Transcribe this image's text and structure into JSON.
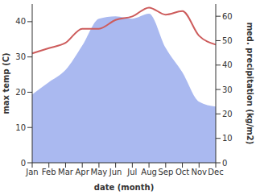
{
  "chart_data": {
    "type": "line",
    "categories": [
      "Jan",
      "Feb",
      "Mar",
      "Apr",
      "May",
      "Jun",
      "Jul",
      "Aug",
      "Sep",
      "Oct",
      "Nov",
      "Dec"
    ],
    "xlabel": "date (month)",
    "ylabel": "max temp (C)",
    "y2label": "med. precipitation (kg/m2)",
    "ylim": [
      0,
      45
    ],
    "yticks": [
      0,
      10,
      20,
      30,
      40
    ],
    "y2lim": [
      0,
      65
    ],
    "y2ticks": [
      0,
      10,
      20,
      30,
      40,
      50,
      60
    ],
    "grid": false,
    "series": [
      {
        "type": "area",
        "axis": "y2",
        "color": "#aab9f0",
        "values": [
          28,
          33,
          38,
          48,
          59,
          60,
          59,
          61,
          47,
          37,
          25,
          23
        ]
      },
      {
        "type": "line",
        "color": "#cd5c5c",
        "values": [
          31,
          32.5,
          34,
          38,
          38,
          40.5,
          41.5,
          44,
          42,
          43,
          36,
          33.5
        ]
      }
    ]
  }
}
